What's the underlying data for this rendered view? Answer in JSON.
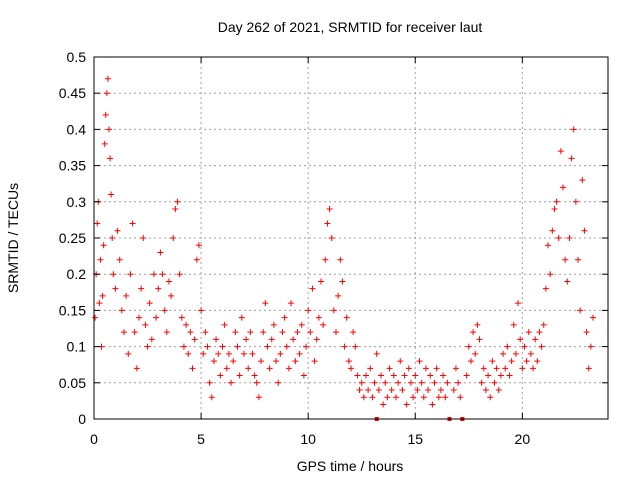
{
  "chart_data": {
    "type": "scatter",
    "title": "Day 262 of 2021, SRMTID for receiver laut",
    "xlabel": "GPS time / hours",
    "ylabel": "SRMTID / TECUs",
    "xlim": [
      0,
      24
    ],
    "ylim": [
      0,
      0.5
    ],
    "x_ticks": [
      0,
      5,
      10,
      15,
      20
    ],
    "x_tick_labels": [
      "0",
      "5",
      "10",
      "15",
      "20"
    ],
    "y_ticks": [
      0,
      0.05,
      0.1,
      0.15,
      0.2,
      0.25,
      0.3,
      0.35,
      0.4,
      0.45,
      0.5
    ],
    "y_tick_labels": [
      "0",
      "0.05",
      "0.1",
      "0.15",
      "0.2",
      "0.25",
      "0.3",
      "0.35",
      "0.4",
      "0.45",
      "0.5"
    ],
    "grid": true,
    "marker": "plus",
    "colors": {
      "series": "#ff0000",
      "grid": "#a0a0a0",
      "axis": "#000000"
    },
    "series": [
      {
        "name": "SRMTID",
        "points": [
          [
            0.05,
            0.14
          ],
          [
            0.1,
            0.2
          ],
          [
            0.15,
            0.27
          ],
          [
            0.2,
            0.3
          ],
          [
            0.25,
            0.16
          ],
          [
            0.3,
            0.22
          ],
          [
            0.35,
            0.1
          ],
          [
            0.4,
            0.17
          ],
          [
            0.45,
            0.24
          ],
          [
            0.5,
            0.38
          ],
          [
            0.55,
            0.42
          ],
          [
            0.6,
            0.45
          ],
          [
            0.65,
            0.47
          ],
          [
            0.7,
            0.4
          ],
          [
            0.75,
            0.36
          ],
          [
            0.8,
            0.31
          ],
          [
            0.85,
            0.25
          ],
          [
            0.9,
            0.2
          ],
          [
            1.0,
            0.18
          ],
          [
            1.1,
            0.26
          ],
          [
            1.2,
            0.22
          ],
          [
            1.3,
            0.15
          ],
          [
            1.4,
            0.12
          ],
          [
            1.5,
            0.17
          ],
          [
            1.6,
            0.09
          ],
          [
            1.7,
            0.2
          ],
          [
            1.8,
            0.27
          ],
          [
            1.9,
            0.12
          ],
          [
            2.0,
            0.07
          ],
          [
            2.1,
            0.14
          ],
          [
            2.2,
            0.18
          ],
          [
            2.3,
            0.25
          ],
          [
            2.4,
            0.13
          ],
          [
            2.5,
            0.1
          ],
          [
            2.6,
            0.16
          ],
          [
            2.7,
            0.11
          ],
          [
            2.8,
            0.2
          ],
          [
            2.9,
            0.14
          ],
          [
            3.0,
            0.18
          ],
          [
            3.1,
            0.23
          ],
          [
            3.2,
            0.2
          ],
          [
            3.3,
            0.15
          ],
          [
            3.4,
            0.12
          ],
          [
            3.5,
            0.19
          ],
          [
            3.6,
            0.17
          ],
          [
            3.7,
            0.25
          ],
          [
            3.8,
            0.29
          ],
          [
            3.9,
            0.3
          ],
          [
            4.0,
            0.2
          ],
          [
            4.1,
            0.14
          ],
          [
            4.2,
            0.1
          ],
          [
            4.3,
            0.13
          ],
          [
            4.4,
            0.09
          ],
          [
            4.5,
            0.12
          ],
          [
            4.6,
            0.07
          ],
          [
            4.7,
            0.11
          ],
          [
            4.8,
            0.22
          ],
          [
            4.9,
            0.24
          ],
          [
            5.0,
            0.15
          ],
          [
            5.1,
            0.09
          ],
          [
            5.2,
            0.12
          ],
          [
            5.3,
            0.1
          ],
          [
            5.4,
            0.05
          ],
          [
            5.5,
            0.03
          ],
          [
            5.6,
            0.08
          ],
          [
            5.7,
            0.11
          ],
          [
            5.8,
            0.09
          ],
          [
            5.9,
            0.06
          ],
          [
            6.0,
            0.1
          ],
          [
            6.1,
            0.13
          ],
          [
            6.2,
            0.07
          ],
          [
            6.3,
            0.09
          ],
          [
            6.4,
            0.05
          ],
          [
            6.5,
            0.08
          ],
          [
            6.6,
            0.12
          ],
          [
            6.7,
            0.1
          ],
          [
            6.8,
            0.06
          ],
          [
            6.9,
            0.14
          ],
          [
            7.0,
            0.09
          ],
          [
            7.1,
            0.11
          ],
          [
            7.2,
            0.07
          ],
          [
            7.3,
            0.12
          ],
          [
            7.4,
            0.09
          ],
          [
            7.5,
            0.06
          ],
          [
            7.6,
            0.05
          ],
          [
            7.7,
            0.03
          ],
          [
            7.8,
            0.08
          ],
          [
            7.9,
            0.12
          ],
          [
            8.0,
            0.16
          ],
          [
            8.1,
            0.1
          ],
          [
            8.2,
            0.07
          ],
          [
            8.3,
            0.11
          ],
          [
            8.4,
            0.13
          ],
          [
            8.5,
            0.08
          ],
          [
            8.6,
            0.05
          ],
          [
            8.7,
            0.09
          ],
          [
            8.8,
            0.12
          ],
          [
            8.9,
            0.14
          ],
          [
            9.0,
            0.1
          ],
          [
            9.1,
            0.07
          ],
          [
            9.2,
            0.16
          ],
          [
            9.3,
            0.11
          ],
          [
            9.4,
            0.08
          ],
          [
            9.5,
            0.12
          ],
          [
            9.6,
            0.09
          ],
          [
            9.7,
            0.13
          ],
          [
            9.8,
            0.06
          ],
          [
            9.9,
            0.1
          ],
          [
            10.0,
            0.15
          ],
          [
            10.1,
            0.12
          ],
          [
            10.2,
            0.18
          ],
          [
            10.3,
            0.08
          ],
          [
            10.4,
            0.11
          ],
          [
            10.5,
            0.14
          ],
          [
            10.6,
            0.19
          ],
          [
            10.7,
            0.13
          ],
          [
            10.8,
            0.22
          ],
          [
            10.9,
            0.27
          ],
          [
            11.0,
            0.29
          ],
          [
            11.1,
            0.25
          ],
          [
            11.2,
            0.15
          ],
          [
            11.3,
            0.12
          ],
          [
            11.4,
            0.17
          ],
          [
            11.5,
            0.22
          ],
          [
            11.6,
            0.19
          ],
          [
            11.7,
            0.1
          ],
          [
            11.8,
            0.14
          ],
          [
            11.9,
            0.08
          ],
          [
            12.0,
            0.07
          ],
          [
            12.1,
            0.12
          ],
          [
            12.2,
            0.1
          ],
          [
            12.3,
            0.06
          ],
          [
            12.4,
            0.04
          ],
          [
            12.5,
            0.05
          ],
          [
            12.6,
            0.03
          ],
          [
            12.7,
            0.06
          ],
          [
            12.8,
            0.04
          ],
          [
            12.9,
            0.07
          ],
          [
            13.0,
            0.03
          ],
          [
            13.1,
            0.05
          ],
          [
            13.2,
            0.09
          ],
          [
            13.3,
            0.04
          ],
          [
            13.4,
            0.06
          ],
          [
            13.5,
            0.02
          ],
          [
            13.6,
            0.05
          ],
          [
            13.7,
            0.03
          ],
          [
            13.8,
            0.07
          ],
          [
            13.9,
            0.04
          ],
          [
            14.0,
            0.06
          ],
          [
            14.1,
            0.03
          ],
          [
            14.2,
            0.05
          ],
          [
            14.3,
            0.08
          ],
          [
            14.4,
            0.04
          ],
          [
            14.5,
            0.06
          ],
          [
            14.6,
            0.02
          ],
          [
            14.7,
            0.07
          ],
          [
            14.8,
            0.05
          ],
          [
            14.9,
            0.03
          ],
          [
            15.0,
            0.06
          ],
          [
            15.1,
            0.04
          ],
          [
            15.2,
            0.08
          ],
          [
            15.3,
            0.05
          ],
          [
            15.4,
            0.03
          ],
          [
            15.5,
            0.07
          ],
          [
            15.6,
            0.04
          ],
          [
            15.7,
            0.06
          ],
          [
            15.8,
            0.02
          ],
          [
            15.9,
            0.05
          ],
          [
            16.0,
            0.07
          ],
          [
            16.1,
            0.03
          ],
          [
            16.2,
            0.04
          ],
          [
            16.3,
            0.06
          ],
          [
            16.4,
            0.03
          ],
          [
            16.5,
            0.05
          ],
          [
            16.8,
            0.04
          ],
          [
            16.9,
            0.07
          ],
          [
            17.0,
            0.05
          ],
          [
            17.1,
            0.03
          ],
          [
            17.4,
            0.06
          ],
          [
            17.5,
            0.1
          ],
          [
            17.6,
            0.08
          ],
          [
            17.7,
            0.12
          ],
          [
            17.8,
            0.09
          ],
          [
            17.9,
            0.13
          ],
          [
            18.0,
            0.11
          ],
          [
            18.1,
            0.05
          ],
          [
            18.2,
            0.07
          ],
          [
            18.3,
            0.04
          ],
          [
            18.4,
            0.06
          ],
          [
            18.5,
            0.03
          ],
          [
            18.6,
            0.08
          ],
          [
            18.7,
            0.05
          ],
          [
            18.8,
            0.07
          ],
          [
            18.9,
            0.04
          ],
          [
            19.0,
            0.06
          ],
          [
            19.1,
            0.09
          ],
          [
            19.2,
            0.07
          ],
          [
            19.3,
            0.1
          ],
          [
            19.4,
            0.06
          ],
          [
            19.5,
            0.08
          ],
          [
            19.6,
            0.13
          ],
          [
            19.7,
            0.09
          ],
          [
            19.8,
            0.16
          ],
          [
            19.9,
            0.11
          ],
          [
            20.0,
            0.07
          ],
          [
            20.1,
            0.1
          ],
          [
            20.2,
            0.08
          ],
          [
            20.3,
            0.12
          ],
          [
            20.4,
            0.09
          ],
          [
            20.5,
            0.07
          ],
          [
            20.6,
            0.11
          ],
          [
            20.7,
            0.08
          ],
          [
            20.8,
            0.12
          ],
          [
            20.9,
            0.1
          ],
          [
            21.0,
            0.13
          ],
          [
            21.1,
            0.18
          ],
          [
            21.2,
            0.24
          ],
          [
            21.3,
            0.2
          ],
          [
            21.4,
            0.26
          ],
          [
            21.5,
            0.29
          ],
          [
            21.6,
            0.3
          ],
          [
            21.7,
            0.25
          ],
          [
            21.8,
            0.37
          ],
          [
            21.9,
            0.32
          ],
          [
            22.0,
            0.22
          ],
          [
            22.1,
            0.19
          ],
          [
            22.2,
            0.25
          ],
          [
            22.3,
            0.36
          ],
          [
            22.4,
            0.4
          ],
          [
            22.5,
            0.3
          ],
          [
            22.6,
            0.22
          ],
          [
            22.7,
            0.15
          ],
          [
            22.8,
            0.33
          ],
          [
            22.9,
            0.26
          ],
          [
            23.0,
            0.12
          ],
          [
            23.1,
            0.07
          ],
          [
            23.2,
            0.1
          ],
          [
            23.3,
            0.14
          ]
        ]
      }
    ],
    "axis_markers_x": [
      13.2,
      16.6,
      17.2
    ]
  }
}
